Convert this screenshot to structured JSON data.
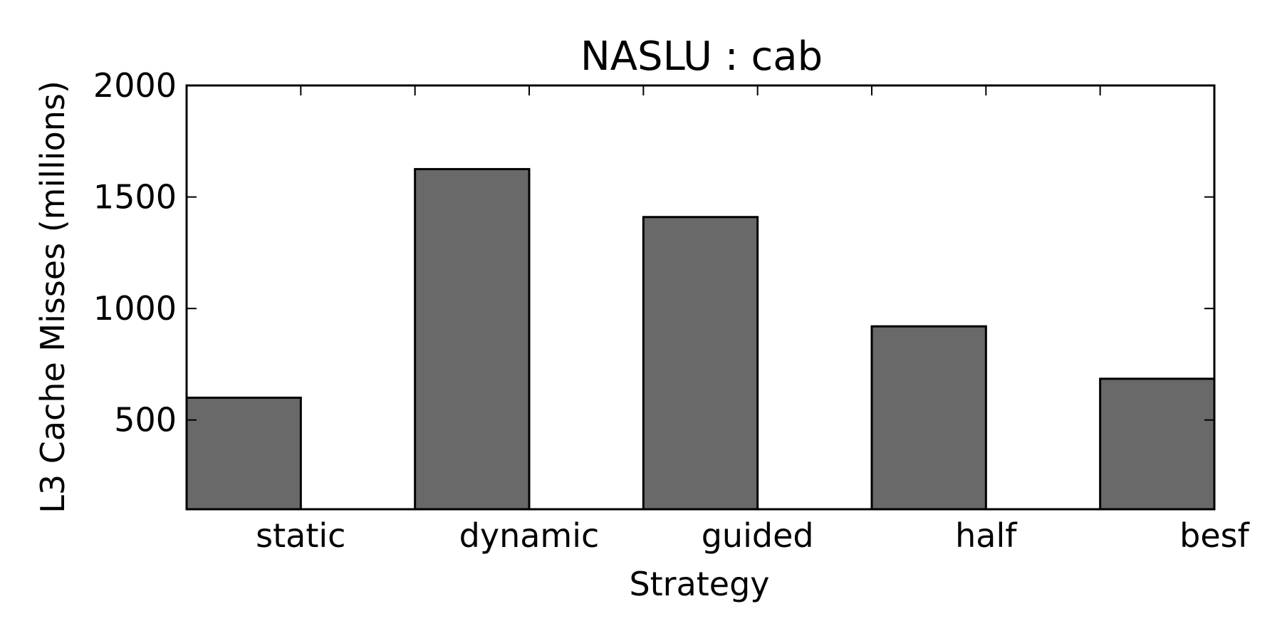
{
  "chart_data": {
    "type": "bar",
    "title": "NASLU : cab",
    "xlabel": "Strategy",
    "ylabel": "L3 Cache Misses (millions)",
    "categories": [
      "static",
      "dynamic",
      "guided",
      "half",
      "besf"
    ],
    "values": [
      600,
      1625,
      1410,
      920,
      685
    ],
    "ylim": [
      100,
      2000
    ],
    "yticks": [
      500,
      1000,
      1500,
      2000
    ],
    "grid": false,
    "legend": "none",
    "bar_color": "#696969",
    "edge_color": "#000000"
  }
}
